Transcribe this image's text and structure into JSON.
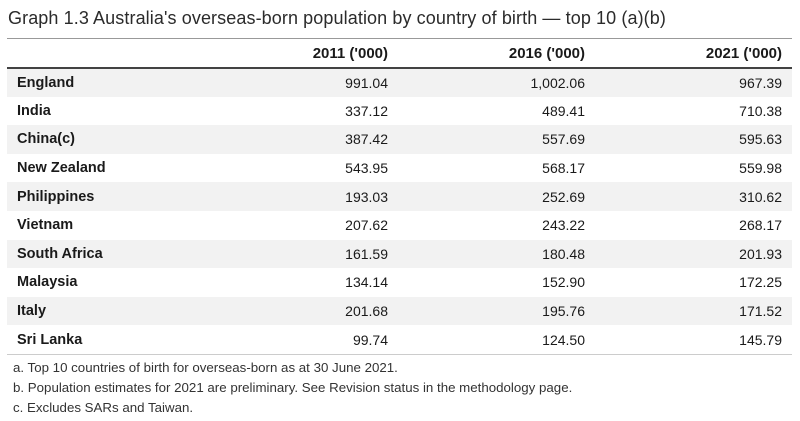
{
  "title": "Graph 1.3 Australia's overseas-born population by country of birth — top 10 (a)(b)",
  "table": {
    "columns": [
      "2011 ('000)",
      "2016 ('000)",
      "2021 ('000)"
    ],
    "rows": [
      {
        "country": "England",
        "values": [
          "991.04",
          "1,002.06",
          "967.39"
        ]
      },
      {
        "country": "India",
        "values": [
          "337.12",
          "489.41",
          "710.38"
        ]
      },
      {
        "country": "China(c)",
        "values": [
          "387.42",
          "557.69",
          "595.63"
        ]
      },
      {
        "country": "New Zealand",
        "values": [
          "543.95",
          "568.17",
          "559.98"
        ]
      },
      {
        "country": "Philippines",
        "values": [
          "193.03",
          "252.69",
          "310.62"
        ]
      },
      {
        "country": "Vietnam",
        "values": [
          "207.62",
          "243.22",
          "268.17"
        ]
      },
      {
        "country": "South Africa",
        "values": [
          "161.59",
          "180.48",
          "201.93"
        ]
      },
      {
        "country": "Malaysia",
        "values": [
          "134.14",
          "152.90",
          "172.25"
        ]
      },
      {
        "country": "Italy",
        "values": [
          "201.68",
          "195.76",
          "171.52"
        ]
      },
      {
        "country": "Sri Lanka",
        "values": [
          "99.74",
          "124.50",
          "145.79"
        ]
      }
    ]
  },
  "footnotes": [
    "a. Top 10 countries of birth for overseas-born as at 30 June 2021.",
    "b. Population estimates for 2021 are preliminary. See Revision status in the methodology page.",
    "c. Excludes SARs and Taiwan."
  ],
  "colors": {
    "stripe": "#f2f2f2",
    "rule-light": "#999999",
    "rule-dark": "#424242",
    "rule-footer": "#cccccc",
    "title-text": "#2b2b2b",
    "body-text": "#1a1a1a",
    "footnote-text": "#333333"
  },
  "chart_data": {
    "type": "table",
    "title": "Graph 1.3 Australia's overseas-born population by country of birth — top 10 (a)(b)",
    "categories": [
      "England",
      "India",
      "China(c)",
      "New Zealand",
      "Philippines",
      "Vietnam",
      "South Africa",
      "Malaysia",
      "Italy",
      "Sri Lanka"
    ],
    "series": [
      {
        "name": "2011 ('000)",
        "values": [
          991.04,
          337.12,
          387.42,
          543.95,
          193.03,
          207.62,
          161.59,
          134.14,
          201.68,
          99.74
        ]
      },
      {
        "name": "2016 ('000)",
        "values": [
          1002.06,
          489.41,
          557.69,
          568.17,
          252.69,
          243.22,
          180.48,
          152.9,
          195.76,
          124.5
        ]
      },
      {
        "name": "2021 ('000)",
        "values": [
          967.39,
          710.38,
          595.63,
          559.98,
          310.62,
          268.17,
          201.93,
          172.25,
          171.52,
          145.79
        ]
      }
    ],
    "footnotes": [
      "a. Top 10 countries of birth for overseas-born as at 30 June 2021.",
      "b. Population estimates for 2021 are preliminary. See Revision status in the methodology page.",
      "c. Excludes SARs and Taiwan."
    ]
  }
}
